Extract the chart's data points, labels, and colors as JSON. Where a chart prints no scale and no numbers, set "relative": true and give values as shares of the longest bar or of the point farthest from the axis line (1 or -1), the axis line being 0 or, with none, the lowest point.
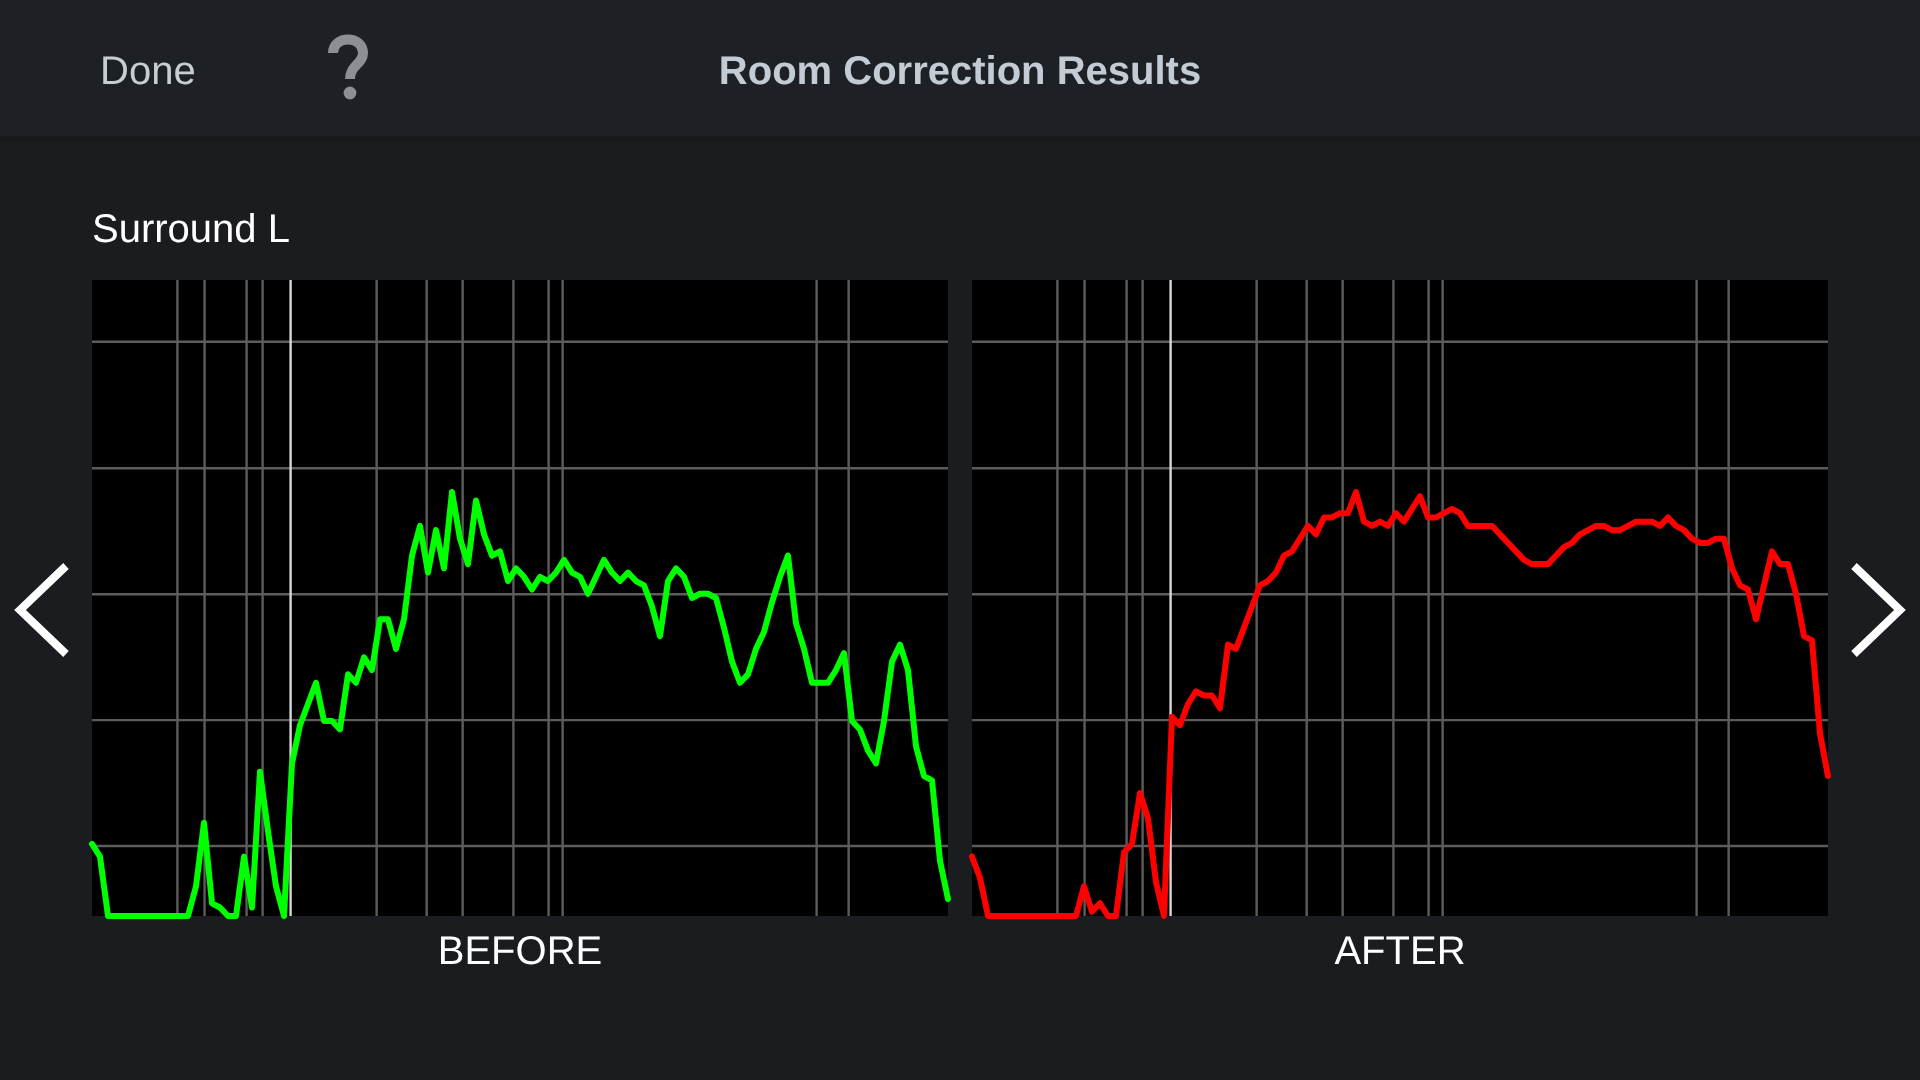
{
  "chart_data": [
    {
      "type": "line",
      "title": "Room Correction Results",
      "subtitle": "Surround L",
      "annotations": [
        "Done"
      ],
      "xlabel": "BEFORE",
      "relative": true,
      "grid": true,
      "categories": [
        null,
        null,
        null,
        null,
        null,
        null,
        null,
        null,
        null,
        null,
        null,
        null,
        null,
        null,
        null,
        null,
        null,
        null,
        null,
        null,
        null,
        null,
        null,
        null,
        null,
        null,
        null,
        null,
        null,
        null,
        null,
        null,
        null,
        null,
        null,
        null,
        null,
        null,
        null,
        null,
        null,
        null,
        null,
        null,
        null,
        null,
        null,
        null,
        null,
        null,
        null,
        null,
        null,
        null,
        null,
        null,
        null,
        null,
        null,
        null,
        null,
        null,
        null,
        null,
        null,
        null,
        null,
        null,
        null,
        null,
        null,
        null,
        null,
        null,
        null,
        null,
        null,
        null,
        null,
        null,
        null,
        null,
        null,
        null,
        null,
        null,
        null,
        null,
        null,
        null,
        null,
        null,
        null,
        null,
        null,
        null,
        null,
        null,
        null,
        null,
        null,
        null,
        null,
        null,
        null,
        null,
        null,
        null
      ],
      "series": [
        {
          "color": "#00ff00",
          "values": [
            0.17,
            0.14,
            0,
            0,
            0,
            0,
            0,
            0,
            0,
            0,
            0,
            0,
            0,
            0.07,
            0.22,
            0.03,
            0.02,
            0,
            0,
            0.14,
            0.02,
            0.34,
            0.2,
            0.07,
            0,
            0.36,
            0.45,
            0.5,
            0.55,
            0.46,
            0.46,
            0.44,
            0.57,
            0.55,
            0.61,
            0.58,
            0.7,
            0.7,
            0.63,
            0.7,
            0.85,
            0.92,
            0.81,
            0.91,
            0.82,
            1,
            0.89,
            0.83,
            0.98,
            0.9,
            0.85,
            0.86,
            0.79,
            0.82,
            0.8,
            0.77,
            0.8,
            0.79,
            0.81,
            0.84,
            0.81,
            0.8,
            0.76,
            0.8,
            0.84,
            0.81,
            0.79,
            0.81,
            0.79,
            0.78,
            0.73,
            0.66,
            0.79,
            0.82,
            0.8,
            0.75,
            0.76,
            0.76,
            0.75,
            0.68,
            0.6,
            0.55,
            0.57,
            0.63,
            0.67,
            0.74,
            0.8,
            0.85,
            0.69,
            0.63,
            0.55,
            0.55,
            0.55,
            0.58,
            0.62,
            0.46,
            0.44,
            0.39,
            0.36,
            0.46,
            0.6,
            0.64,
            0.58,
            0.4,
            0.33,
            0.32,
            0.13,
            0.04
          ]
        }
      ]
    },
    {
      "type": "line",
      "xlabel": "AFTER",
      "relative": true,
      "grid": true,
      "categories": [
        null,
        null,
        null,
        null,
        null,
        null,
        null,
        null,
        null,
        null,
        null,
        null,
        null,
        null,
        null,
        null,
        null,
        null,
        null,
        null,
        null,
        null,
        null,
        null,
        null,
        null,
        null,
        null,
        null,
        null,
        null,
        null,
        null,
        null,
        null,
        null,
        null,
        null,
        null,
        null,
        null,
        null,
        null,
        null,
        null,
        null,
        null,
        null,
        null,
        null,
        null,
        null,
        null,
        null,
        null,
        null,
        null,
        null,
        null,
        null,
        null,
        null,
        null,
        null,
        null,
        null,
        null,
        null,
        null,
        null,
        null,
        null,
        null,
        null,
        null,
        null,
        null,
        null,
        null,
        null,
        null,
        null,
        null,
        null,
        null,
        null,
        null,
        null,
        null,
        null,
        null,
        null,
        null,
        null,
        null,
        null,
        null,
        null,
        null,
        null,
        null,
        null,
        null,
        null,
        null,
        null,
        null,
        null
      ],
      "series": [
        {
          "color": "#ff0000",
          "values": [
            0.14,
            0.09,
            0,
            0,
            0,
            0,
            0,
            0,
            0,
            0,
            0,
            0,
            0,
            0,
            0.07,
            0.01,
            0.03,
            0,
            0,
            0.15,
            0.17,
            0.29,
            0.23,
            0.08,
            0,
            0.47,
            0.45,
            0.5,
            0.53,
            0.52,
            0.52,
            0.49,
            0.64,
            0.63,
            0.68,
            0.73,
            0.78,
            0.79,
            0.81,
            0.85,
            0.86,
            0.89,
            0.92,
            0.9,
            0.94,
            0.94,
            0.95,
            0.95,
            1,
            0.93,
            0.92,
            0.93,
            0.92,
            0.95,
            0.93,
            0.96,
            0.99,
            0.94,
            0.94,
            0.95,
            0.96,
            0.95,
            0.92,
            0.92,
            0.92,
            0.92,
            0.9,
            0.88,
            0.86,
            0.84,
            0.83,
            0.83,
            0.83,
            0.85,
            0.87,
            0.88,
            0.9,
            0.91,
            0.92,
            0.92,
            0.91,
            0.91,
            0.92,
            0.93,
            0.93,
            0.93,
            0.92,
            0.94,
            0.92,
            0.91,
            0.89,
            0.88,
            0.88,
            0.89,
            0.89,
            0.82,
            0.78,
            0.77,
            0.7,
            0.78,
            0.86,
            0.83,
            0.83,
            0.76,
            0.66,
            0.65,
            0.43,
            0.33
          ]
        }
      ]
    }
  ]
}
